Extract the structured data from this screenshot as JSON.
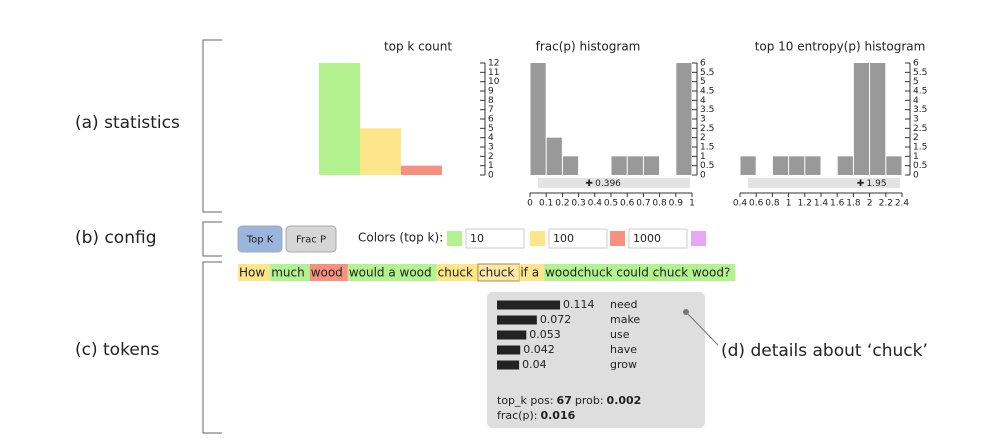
{
  "labels": [
    "(a) statistics",
    "(b) config",
    "(c) tokens"
  ],
  "stats": [
    {
      "type": "bar",
      "title": "top k count",
      "values": [
        12,
        5,
        1
      ],
      "colors": [
        "#b3f28e",
        "#fde68a",
        "#f7917f"
      ],
      "ylim": [
        0,
        12
      ],
      "yticks": [
        0,
        1,
        2,
        3,
        4,
        5,
        6,
        7,
        8,
        9,
        10,
        11,
        12
      ]
    },
    {
      "type": "histogram",
      "title": "frac(p) histogram",
      "color": "#999999",
      "bins": [
        0,
        0.1,
        0.2,
        0.3,
        0.4,
        0.5,
        0.6,
        0.7,
        0.8,
        0.9,
        1
      ],
      "counts": [
        6,
        2,
        1,
        0,
        0,
        1,
        1,
        1,
        0,
        6
      ],
      "xlim": [
        0,
        1
      ],
      "xticks": [
        0,
        0.1,
        0.2,
        0.3,
        0.4,
        0.5,
        0.6,
        0.7,
        0.8,
        0.9,
        1
      ],
      "ylim": [
        0,
        6
      ],
      "yticks": [
        0,
        0.5,
        1,
        1.5,
        2,
        2.5,
        3,
        3.5,
        4,
        4.5,
        5,
        5.5,
        6
      ],
      "marker": 0.396
    },
    {
      "type": "histogram",
      "title": "top 10 entropy(p) histogram",
      "color": "#999999",
      "bins": [
        0.4,
        0.6,
        0.8,
        1,
        1.2,
        1.4,
        1.6,
        1.8,
        2,
        2.2,
        2.4
      ],
      "counts": [
        1,
        0,
        1,
        1,
        1,
        0,
        1,
        6,
        6,
        1
      ],
      "xlim": [
        0.4,
        2.4
      ],
      "xticks": [
        0.4,
        0.6,
        0.8,
        1,
        1.2,
        1.4,
        1.6,
        1.8,
        2,
        2.2,
        2.4
      ],
      "ylim": [
        0,
        6
      ],
      "yticks": [
        0,
        0.5,
        1,
        1.5,
        2,
        2.5,
        3,
        3.5,
        4,
        4.5,
        5,
        5.5,
        6
      ],
      "marker": 1.95
    }
  ],
  "config": {
    "buttons": [
      "Top K",
      "Frac P"
    ],
    "colors_label": "Colors (top k):",
    "thresholds": [
      {
        "color": "#b3f28e",
        "value": 10
      },
      {
        "color": "#fde68a",
        "value": 100
      },
      {
        "color": "#f7917f",
        "value": 1000
      }
    ],
    "last_color": "#e6a8f5"
  },
  "tokens": [
    {
      "text": "How",
      "color": "#fde68a"
    },
    {
      "text": "much",
      "color": "#b3f28e"
    },
    {
      "text": "wood",
      "color": "#f7917f"
    },
    {
      "text": "would a wood",
      "color": "#b3f28e"
    },
    {
      "text": "chuck",
      "color": "#fde68a"
    },
    {
      "text": "chuck",
      "color": "#fbe9a8"
    },
    {
      "text": "if a",
      "color": "#fde68a"
    },
    {
      "text": "woodchuck could chuck wood?",
      "color": "#b3f28e"
    }
  ],
  "details": {
    "top": [
      {
        "value": 0.114,
        "word": "need"
      },
      {
        "value": 0.072,
        "word": "make"
      },
      {
        "value": 0.053,
        "word": "use"
      },
      {
        "value": 0.042,
        "word": "have"
      },
      {
        "value": 0.04,
        "word": "grow"
      }
    ],
    "top_k_label": "top_k pos:",
    "top_k": 67,
    "prob_label": "prob:",
    "prob": 0.002,
    "frac_label": "frac(p):",
    "frac": 0.016,
    "annotation": "(d) details about ‘chuck’"
  }
}
